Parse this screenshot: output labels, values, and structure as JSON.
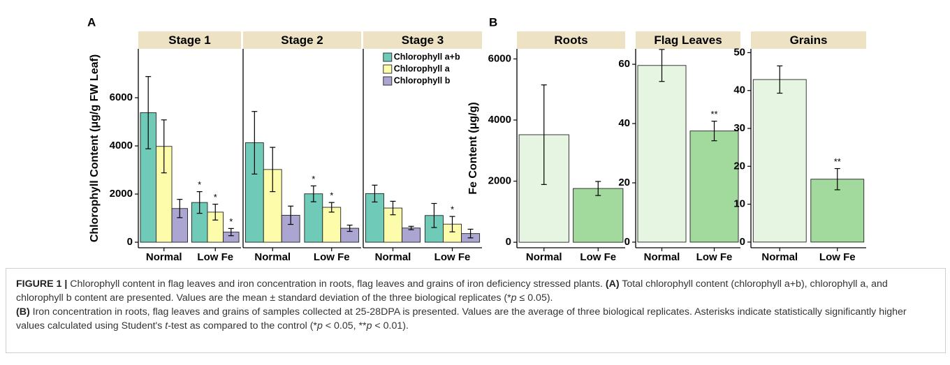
{
  "chart_data": [
    {
      "type": "bar",
      "panel": "A",
      "ylabel": "Chlorophyll Content (μg/g FW Leaf)",
      "facets": [
        "Stage 1",
        "Stage 2",
        "Stage 3"
      ],
      "categories": [
        "Normal",
        "Low Fe"
      ],
      "series": [
        {
          "name": "Chlorophyll a+b",
          "color": "#6fcab7",
          "values": [
            [
              5380,
              1650
            ],
            [
              4130,
              2010
            ],
            [
              2020,
              1110
            ]
          ],
          "errors": [
            [
              1500,
              450
            ],
            [
              1300,
              330
            ],
            [
              350,
              500
            ]
          ],
          "annotations": [
            [
              null,
              "*"
            ],
            [
              null,
              "*"
            ],
            [
              null,
              null
            ]
          ]
        },
        {
          "name": "Chlorophyll a",
          "color": "#fdfcaa",
          "values": [
            [
              3980,
              1250
            ],
            [
              3020,
              1450
            ],
            [
              1420,
              750
            ]
          ],
          "errors": [
            [
              1100,
              330
            ],
            [
              920,
              200
            ],
            [
              280,
              320
            ]
          ],
          "annotations": [
            [
              null,
              "*"
            ],
            [
              null,
              "*"
            ],
            [
              null,
              "*"
            ]
          ]
        },
        {
          "name": "Chlorophyll b",
          "color": "#aaa5d1",
          "values": [
            [
              1400,
              420
            ],
            [
              1120,
              580
            ],
            [
              590,
              360
            ]
          ],
          "errors": [
            [
              380,
              150
            ],
            [
              380,
              130
            ],
            [
              70,
              180
            ]
          ],
          "annotations": [
            [
              null,
              "*"
            ],
            [
              null,
              null
            ],
            [
              null,
              null
            ]
          ]
        }
      ],
      "ylim": [
        -230,
        8030
      ],
      "yticks": [
        0,
        2000,
        4000,
        6000
      ],
      "legend": "top-right",
      "strip_color": "#ede3c4"
    },
    {
      "type": "bar",
      "panel": "B",
      "ylabel": "Fe Content (μg/g)",
      "title": "Roots",
      "categories": [
        "Normal",
        "Low Fe"
      ],
      "values": [
        3520,
        1760
      ],
      "errors": [
        1630,
        230
      ],
      "annotations": [
        null,
        null
      ],
      "colors": [
        "#e6f5e1",
        "#a2d99c"
      ],
      "ylim": [
        -180,
        6330
      ],
      "yticks": [
        0,
        2000,
        4000,
        6000
      ],
      "strip_color": "#ede3c4"
    },
    {
      "type": "bar",
      "title": "Flag Leaves",
      "categories": [
        "Normal",
        "Low Fe"
      ],
      "values": [
        59.6,
        37.5
      ],
      "errors": [
        5.4,
        3.3
      ],
      "annotations": [
        null,
        "**"
      ],
      "colors": [
        "#e6f5e1",
        "#a2d99c"
      ],
      "ylim": [
        -1.9,
        65.2
      ],
      "yticks": [
        0,
        20,
        40,
        60
      ],
      "strip_color": "#ede3c4"
    },
    {
      "type": "bar",
      "title": "Grains",
      "categories": [
        "Normal",
        "Low Fe"
      ],
      "values": [
        42.9,
        16.6
      ],
      "errors": [
        3.6,
        2.8
      ],
      "annotations": [
        null,
        "**"
      ],
      "colors": [
        "#e6f5e1",
        "#a2d99c"
      ],
      "ylim": [
        -1.5,
        51.0
      ],
      "yticks": [
        0,
        10,
        20,
        30,
        40,
        50
      ],
      "strip_color": "#ede3c4"
    }
  ],
  "figure_caption": [
    [
      {
        "text": "FIGURE 1 |",
        "bold": true
      },
      {
        "text": " Chlorophyll content in flag leaves and iron concentration in roots, flag leaves and grains of iron deficiency stressed plants. "
      },
      {
        "text": "(A)",
        "bold": true
      },
      {
        "text": " Total chlorophyll content (chlorophyll a+b), chlorophyll a, and chlorophyll b content are presented. Values are the mean ± standard deviation of the three biological replicates (*"
      },
      {
        "text": "p",
        "italic": true
      },
      {
        "text": " ≤ 0.05)."
      }
    ],
    [
      {
        "text": "(B)",
        "bold": true
      },
      {
        "text": " Iron concentration in roots, flag leaves and grains of samples collected at 25-28DPA is presented. Values are the average of three biological replicates. Asterisks indicate statistically significantly higher values calculated using Student's "
      },
      {
        "text": "t",
        "italic": true
      },
      {
        "text": "-test as compared to the control (*"
      },
      {
        "text": "p",
        "italic": true
      },
      {
        "text": " < 0.05, **"
      },
      {
        "text": "p",
        "italic": true
      },
      {
        "text": " < 0.01)."
      }
    ]
  ]
}
